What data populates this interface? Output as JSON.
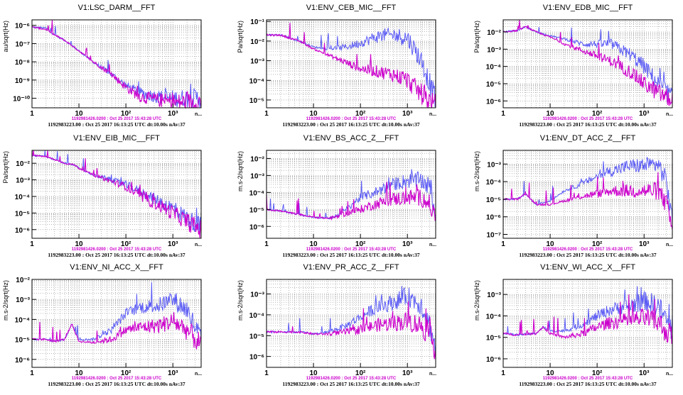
{
  "colors": {
    "current": "#5b5bf5",
    "reference": "#cc00cc",
    "grid": "#8a8a8a",
    "frame": "#000000"
  },
  "panels_meta": {
    "reference_caption": "1192981426.0200 : Oct 25 2017 15:43:28 UTC",
    "gps_caption": "1192983223.00 : Oct 25 2017 16:13:25 UTC dt:10.00s nAv:37"
  },
  "chart_data": [
    {
      "type": "line",
      "title": "V1:LSC_DARM__FFT",
      "ylabel": "au/sqrt(Hz)",
      "xscale": "log",
      "yscale": "log",
      "xlim": [
        1,
        4000
      ],
      "ylim": [
        3e-11,
        2e-06
      ],
      "xticks": [
        "1",
        "10",
        "10²",
        "10³"
      ],
      "yticks": [
        "10⁻⁶",
        "10⁻⁷",
        "10⁻⁸",
        "10⁻⁹",
        "10⁻¹⁰"
      ],
      "grid": true,
      "series": [
        {
          "x": [
            1,
            2,
            3,
            5,
            10,
            20,
            30,
            50,
            100,
            200,
            500,
            1000,
            2000,
            4000
          ],
          "y": [
            8e-07,
            7e-07,
            3e-07,
            1.5e-07,
            4e-08,
            1e-08,
            5e-09,
            2e-09,
            5e-10,
            2e-10,
            1.2e-10,
            1e-10,
            1e-10,
            1e-10
          ]
        },
        {
          "x": [
            1,
            2,
            3,
            5,
            10,
            20,
            30,
            50,
            100,
            200,
            500,
            1000,
            2000,
            4000
          ],
          "y": [
            8e-07,
            6e-07,
            3e-07,
            1.5e-07,
            4e-08,
            1e-08,
            5e-09,
            2e-09,
            4e-10,
            1.2e-10,
            8e-11,
            6e-11,
            6e-11,
            6e-11
          ]
        }
      ]
    },
    {
      "type": "line",
      "title": "V1:ENV_CEB_MIC__FFT",
      "ylabel": "Pa/sqrt(Hz)",
      "xscale": "log",
      "yscale": "log",
      "xlim": [
        1,
        4000
      ],
      "ylim": [
        4e-06,
        0.12
      ],
      "xticks": [
        "1",
        "10",
        "10²",
        "10³"
      ],
      "yticks": [
        "10⁻¹",
        "10⁻²",
        "10⁻³",
        "10⁻⁴",
        "10⁻⁵"
      ],
      "grid": true,
      "series": [
        {
          "x": [
            1,
            2,
            5,
            10,
            20,
            50,
            100,
            200,
            300,
            500,
            1000,
            2000,
            4000
          ],
          "y": [
            0.02,
            0.02,
            0.01,
            0.005,
            0.004,
            0.005,
            0.008,
            0.015,
            0.02,
            0.02,
            0.015,
            0.001,
            1e-05
          ]
        },
        {
          "x": [
            1,
            2,
            5,
            10,
            20,
            50,
            100,
            200,
            500,
            1000,
            2000,
            4000
          ],
          "y": [
            0.02,
            0.02,
            0.01,
            0.004,
            0.002,
            0.0008,
            0.0004,
            0.0003,
            0.0002,
            0.0001,
            2e-05,
            5e-06
          ]
        }
      ]
    },
    {
      "type": "line",
      "title": "V1:ENV_EDB_MIC__FFT",
      "ylabel": "Pa/sqrt(Hz)",
      "xscale": "log",
      "yscale": "log",
      "xlim": [
        1,
        4000
      ],
      "ylim": [
        4e-07,
        0.05
      ],
      "xticks": [
        "1",
        "10",
        "10²",
        "10³"
      ],
      "yticks": [
        "10⁻²",
        "10⁻³",
        "10⁻⁴",
        "10⁻⁵",
        "10⁻⁶"
      ],
      "grid": true,
      "series": [
        {
          "x": [
            1,
            2,
            3,
            5,
            10,
            20,
            50,
            100,
            200,
            500,
            1000,
            2000,
            4000
          ],
          "y": [
            0.01,
            0.012,
            0.02,
            0.01,
            0.006,
            0.004,
            0.002,
            0.002,
            0.002,
            0.0005,
            0.0001,
            1e-05,
            1.5e-06
          ]
        },
        {
          "x": [
            1,
            2,
            3,
            5,
            10,
            20,
            50,
            100,
            200,
            500,
            1000,
            2000,
            4000
          ],
          "y": [
            0.01,
            0.012,
            0.02,
            0.01,
            0.005,
            0.002,
            0.0008,
            0.0004,
            0.0002,
            5e-05,
            1e-05,
            3e-06,
            1e-06
          ]
        }
      ]
    },
    {
      "type": "line",
      "title": "V1:ENV_EIB_MIC__FFT",
      "ylabel": "Pa/sqrt(Hz)",
      "xscale": "log",
      "yscale": "log",
      "xlim": [
        1,
        4000
      ],
      "ylim": [
        3e-07,
        0.06
      ],
      "xticks": [
        "1",
        "10",
        "10²",
        "10³"
      ],
      "yticks": [
        "10⁻²",
        "10⁻³",
        "10⁻⁴",
        "10⁻⁵",
        "10⁻⁶"
      ],
      "grid": true,
      "series": [
        {
          "x": [
            1,
            2,
            5,
            8,
            10,
            20,
            50,
            100,
            200,
            500,
            1000,
            2000,
            4000
          ],
          "y": [
            0.03,
            0.025,
            0.01,
            0.008,
            0.005,
            0.002,
            0.001,
            0.0005,
            0.0002,
            5e-05,
            2e-05,
            5e-06,
            1.5e-06
          ]
        },
        {
          "x": [
            1,
            2,
            5,
            8,
            10,
            20,
            50,
            100,
            200,
            500,
            1000,
            2000,
            4000
          ],
          "y": [
            0.03,
            0.025,
            0.01,
            0.008,
            0.005,
            0.002,
            0.0008,
            0.0004,
            0.0001,
            3e-05,
            1e-05,
            3e-06,
            1e-06
          ]
        }
      ]
    },
    {
      "type": "line",
      "title": "V1:ENV_BS_ACC_Z__FFT",
      "ylabel": "m.s-2/sqrt(Hz)",
      "xscale": "log",
      "yscale": "log",
      "xlim": [
        1,
        4000
      ],
      "ylim": [
        2e-07,
        0.03
      ],
      "xticks": [
        "1",
        "10",
        "10²",
        "10³"
      ],
      "yticks": [
        "10⁻²",
        "10⁻³",
        "10⁻⁴",
        "10⁻⁵",
        "10⁻⁶"
      ],
      "grid": true,
      "series": [
        {
          "x": [
            1,
            2,
            5,
            10,
            20,
            30,
            50,
            100,
            200,
            500,
            1000,
            2000,
            3000,
            4000
          ],
          "y": [
            1e-05,
            8e-06,
            5e-06,
            3.5e-06,
            3e-06,
            4e-06,
            1e-05,
            5e-05,
            0.0001,
            0.0003,
            0.0005,
            0.0005,
            0.0002,
            5e-06
          ]
        },
        {
          "x": [
            1,
            2,
            5,
            10,
            20,
            30,
            50,
            100,
            200,
            500,
            1000,
            2000,
            3000,
            4000
          ],
          "y": [
            1e-05,
            8e-06,
            5e-06,
            3.5e-06,
            3e-06,
            3.5e-06,
            6e-06,
            1e-05,
            2e-05,
            4e-05,
            5e-05,
            5e-05,
            2e-05,
            3e-06
          ]
        }
      ]
    },
    {
      "type": "line",
      "title": "V1:ENV_DT_ACC_Z__FFT",
      "ylabel": "m.s-2/sqrt(Hz)",
      "xscale": "log",
      "yscale": "log",
      "xlim": [
        1,
        4000
      ],
      "ylim": [
        6e-08,
        0.006
      ],
      "xticks": [
        "1",
        "10",
        "10²",
        "10³"
      ],
      "yticks": [
        "10⁻³",
        "10⁻⁴",
        "10⁻⁵",
        "10⁻⁶",
        "10⁻⁷"
      ],
      "grid": true,
      "series": [
        {
          "x": [
            1,
            2,
            3,
            5,
            10,
            20,
            50,
            100,
            200,
            500,
            1000,
            2000,
            3000,
            4000
          ],
          "y": [
            1e-05,
            1e-05,
            2e-05,
            5e-06,
            8e-06,
            3e-05,
            8e-05,
            0.0002,
            0.0004,
            0.0008,
            0.0008,
            0.001,
            0.0001,
            5e-07
          ]
        },
        {
          "x": [
            1,
            2,
            3,
            5,
            10,
            20,
            50,
            100,
            200,
            500,
            1000,
            2000,
            3000,
            4000
          ],
          "y": [
            1e-05,
            1e-05,
            2e-05,
            5e-06,
            5e-06,
            8e-06,
            1.5e-05,
            2e-05,
            3e-05,
            3e-05,
            3e-05,
            3e-05,
            5e-06,
            2e-07
          ]
        }
      ]
    },
    {
      "type": "line",
      "title": "V1:ENV_NI_ACC_X__FFT",
      "ylabel": "m.s-2/sqrt(Hz)",
      "xscale": "log",
      "yscale": "log",
      "xlim": [
        1,
        4000
      ],
      "ylim": [
        4e-07,
        0.01
      ],
      "xticks": [
        "1",
        "10",
        "10²",
        "10³"
      ],
      "yticks": [
        "10⁻²",
        "10⁻³",
        "10⁻⁴",
        "10⁻⁵",
        "10⁻⁶"
      ],
      "grid": true,
      "series": [
        {
          "x": [
            1,
            2,
            3,
            5,
            7,
            10,
            20,
            50,
            100,
            200,
            500,
            1000,
            2000,
            4000
          ],
          "y": [
            1e-05,
            1e-05,
            8e-06,
            1e-05,
            6e-05,
            1e-05,
            1e-05,
            3e-05,
            0.0002,
            0.0004,
            0.0005,
            0.001,
            0.0003,
            1e-05
          ]
        },
        {
          "x": [
            1,
            2,
            3,
            5,
            7,
            10,
            20,
            50,
            100,
            200,
            500,
            1000,
            2000,
            4000
          ],
          "y": [
            1e-05,
            1e-05,
            8e-06,
            1e-05,
            6e-05,
            8e-06,
            7e-06,
            1e-05,
            3e-05,
            4e-05,
            5e-05,
            8e-05,
            3e-05,
            5e-06
          ]
        }
      ]
    },
    {
      "type": "line",
      "title": "V1:ENV_PR_ACC_Z__FFT",
      "ylabel": "m.s-2/sqrt(Hz)",
      "xscale": "log",
      "yscale": "log",
      "xlim": [
        1,
        4000
      ],
      "ylim": [
        3e-07,
        0.005
      ],
      "xticks": [
        "1",
        "10",
        "10²",
        "10³"
      ],
      "yticks": [
        "10⁻³",
        "10⁻⁴",
        "10⁻⁵",
        "10⁻⁶"
      ],
      "grid": true,
      "series": [
        {
          "x": [
            1,
            2,
            5,
            10,
            20,
            50,
            100,
            200,
            500,
            1000,
            2000,
            3000,
            4000
          ],
          "y": [
            1.5e-05,
            1.5e-05,
            1.5e-05,
            1.2e-05,
            1.5e-05,
            3e-05,
            8e-05,
            0.0002,
            0.0004,
            0.0008,
            0.0003,
            3e-05,
            2e-06
          ]
        },
        {
          "x": [
            1,
            2,
            5,
            10,
            20,
            50,
            100,
            200,
            500,
            1000,
            2000,
            3000,
            4000
          ],
          "y": [
            1.5e-05,
            1.5e-05,
            1.5e-05,
            1.2e-05,
            1.2e-05,
            1.5e-05,
            2e-05,
            3e-05,
            4e-05,
            5e-05,
            3e-05,
            1e-05,
            2e-06
          ]
        }
      ]
    },
    {
      "type": "line",
      "title": "V1:ENV_WI_ACC_X__FFT",
      "ylabel": "m.s-2/sqrt(Hz)",
      "xscale": "log",
      "yscale": "log",
      "xlim": [
        1,
        4000
      ],
      "ylim": [
        4e-07,
        0.005
      ],
      "xticks": [
        "1",
        "10",
        "10²",
        "10³"
      ],
      "yticks": [
        "10⁻³",
        "10⁻⁴",
        "10⁻⁵",
        "10⁻⁶"
      ],
      "grid": true,
      "series": [
        {
          "x": [
            1,
            2,
            5,
            7,
            10,
            20,
            50,
            100,
            200,
            500,
            1000,
            2000,
            4000
          ],
          "y": [
            1.5e-05,
            1.3e-05,
            1.5e-05,
            3e-05,
            2e-05,
            2e-05,
            4e-05,
            0.0001,
            0.0002,
            0.0003,
            0.0005,
            0.0003,
            2e-05
          ]
        },
        {
          "x": [
            1,
            2,
            5,
            7,
            10,
            20,
            50,
            100,
            200,
            500,
            1000,
            2000,
            4000
          ],
          "y": [
            1.5e-05,
            1.3e-05,
            1.5e-05,
            3e-05,
            1.5e-05,
            1e-05,
            1.5e-05,
            3e-05,
            5e-05,
            6e-05,
            8e-05,
            5e-05,
            1e-05
          ]
        }
      ]
    }
  ]
}
